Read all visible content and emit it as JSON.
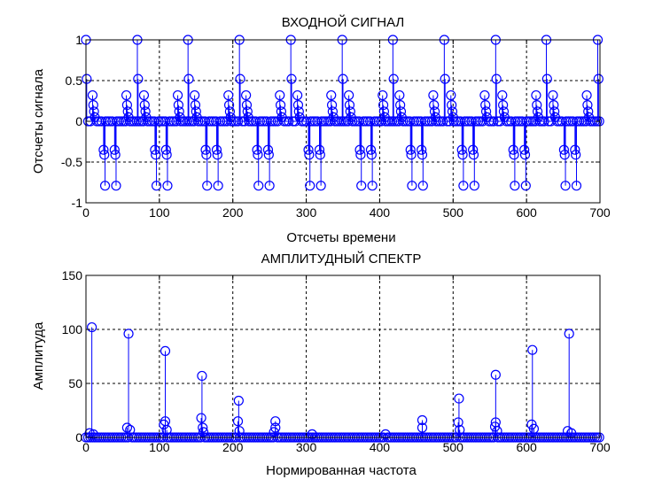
{
  "chart_data": [
    {
      "type": "stem",
      "title": "ВХОДНОЙ СИГНАЛ",
      "xlabel": "Отсчеты времени",
      "ylabel": "Отсчеты сигнала",
      "xlim": [
        0,
        700
      ],
      "ylim": [
        -1,
        1
      ],
      "xticks": [
        "0",
        "100",
        "200",
        "300",
        "400",
        "500",
        "600",
        "700"
      ],
      "yticks": [
        "-1",
        "-0.5",
        "0",
        "0.5",
        "1"
      ],
      "grid": true,
      "color": "#0000ff",
      "series": [
        {
          "periodic": true,
          "period": 69.7,
          "cycles": 11,
          "pattern": [
            {
              "x": 0,
              "y": 1
            },
            {
              "x": 1,
              "y": 0.52
            },
            {
              "x": 9,
              "y": 0.32
            },
            {
              "x": 10,
              "y": 0.2
            },
            {
              "x": 11,
              "y": 0.12
            },
            {
              "x": 12,
              "y": 0.05
            },
            {
              "x": 24,
              "y": -0.35
            },
            {
              "x": 25,
              "y": -0.41
            },
            {
              "x": 26,
              "y": -0.79
            },
            {
              "x": 39,
              "y": -0.35
            },
            {
              "x": 40,
              "y": -0.41
            },
            {
              "x": 41,
              "y": -0.79
            },
            {
              "x": 55,
              "y": 0.32
            },
            {
              "x": 56,
              "y": 0.2
            },
            {
              "x": 57,
              "y": 0.12
            },
            {
              "x": 58,
              "y": 0.05
            }
          ],
          "baseline_samples": 700
        }
      ]
    },
    {
      "type": "stem",
      "title": "АМПЛИТУДНЫЙ СПЕКТР",
      "xlabel": "Нормированная частота",
      "ylabel": "Амплитуда",
      "xlim": [
        0,
        700
      ],
      "ylim": [
        0,
        150
      ],
      "xticks": [
        "0",
        "100",
        "200",
        "300",
        "400",
        "500",
        "600",
        "700"
      ],
      "yticks": [
        "0",
        "50",
        "100",
        "150"
      ],
      "grid": true,
      "color": "#0000ff",
      "series": [
        {
          "peaks": [
            {
              "x": 8,
              "y": 102
            },
            {
              "x": 5,
              "y": 4
            },
            {
              "x": 10,
              "y": 3
            },
            {
              "x": 58,
              "y": 96
            },
            {
              "x": 56,
              "y": 9
            },
            {
              "x": 60,
              "y": 7
            },
            {
              "x": 108,
              "y": 80
            },
            {
              "x": 108,
              "y": 15
            },
            {
              "x": 106,
              "y": 12
            },
            {
              "x": 110,
              "y": 7
            },
            {
              "x": 158,
              "y": 57
            },
            {
              "x": 157,
              "y": 18
            },
            {
              "x": 159,
              "y": 9
            },
            {
              "x": 160,
              "y": 5
            },
            {
              "x": 208,
              "y": 34
            },
            {
              "x": 207,
              "y": 15
            },
            {
              "x": 209,
              "y": 6
            },
            {
              "x": 258,
              "y": 15
            },
            {
              "x": 258,
              "y": 9
            },
            {
              "x": 256,
              "y": 5
            },
            {
              "x": 308,
              "y": 3
            },
            {
              "x": 408,
              "y": 3
            },
            {
              "x": 458,
              "y": 16
            },
            {
              "x": 458,
              "y": 9
            },
            {
              "x": 508,
              "y": 36
            },
            {
              "x": 507,
              "y": 14
            },
            {
              "x": 509,
              "y": 7
            },
            {
              "x": 558,
              "y": 58
            },
            {
              "x": 558,
              "y": 14
            },
            {
              "x": 557,
              "y": 10
            },
            {
              "x": 560,
              "y": 6
            },
            {
              "x": 608,
              "y": 81
            },
            {
              "x": 607,
              "y": 12
            },
            {
              "x": 610,
              "y": 8
            },
            {
              "x": 658,
              "y": 96
            },
            {
              "x": 656,
              "y": 6
            },
            {
              "x": 661,
              "y": 4
            }
          ],
          "baseline_samples": 700
        }
      ]
    }
  ]
}
